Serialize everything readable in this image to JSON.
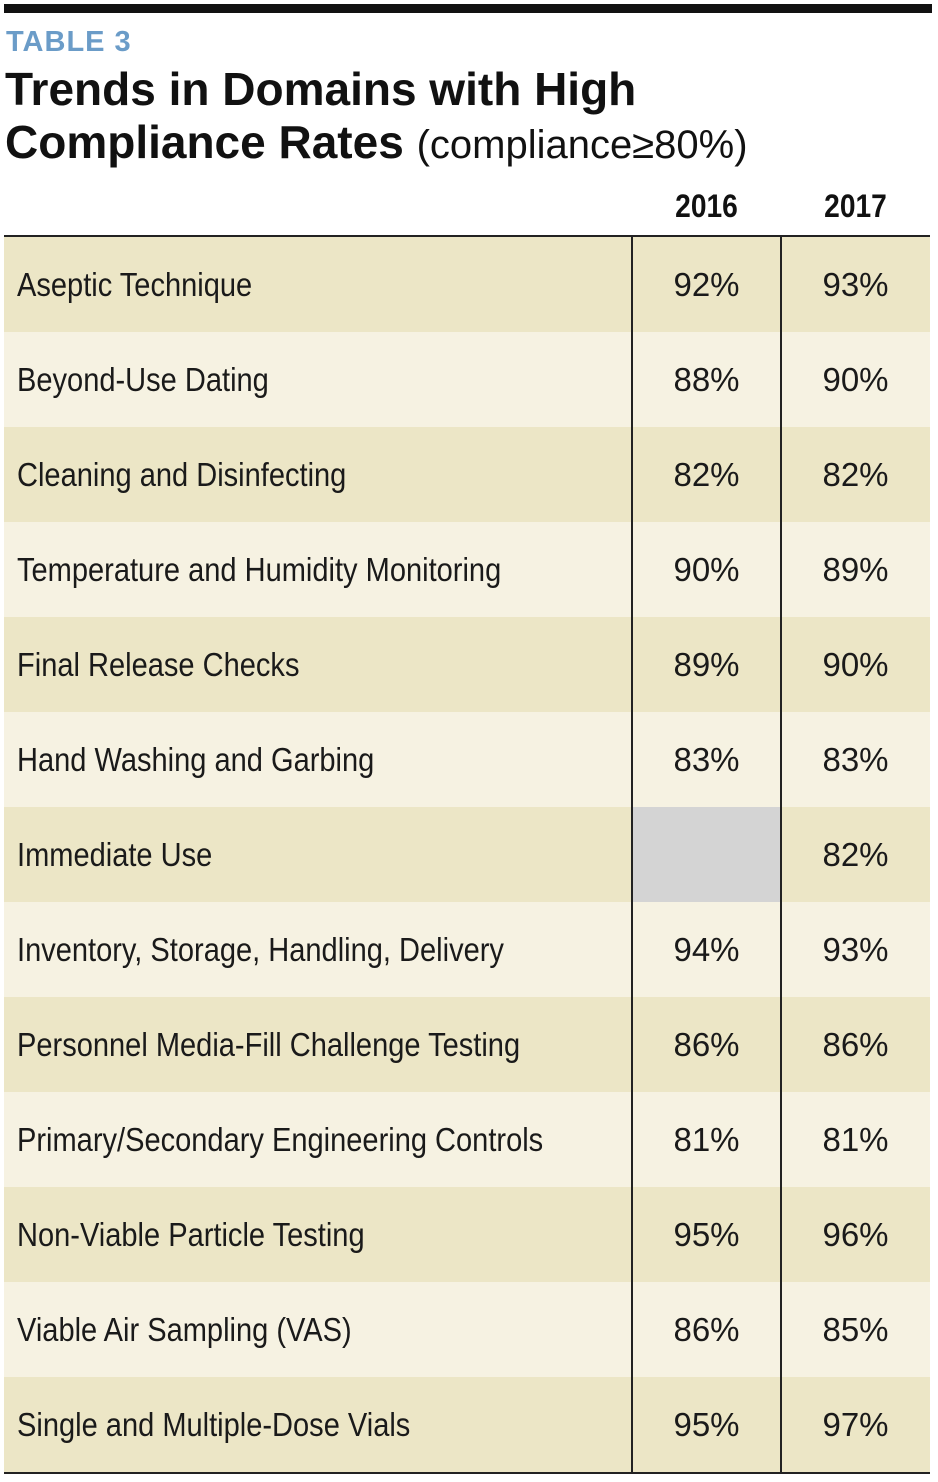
{
  "header": {
    "label": "TABLE 3",
    "title": "Trends in Domains with High Compliance Rates",
    "subtitle": "(compliance≥80%)"
  },
  "table": {
    "columns": [
      "2016",
      "2017"
    ],
    "rows": [
      [
        "Aseptic Technique",
        "92%",
        "93%"
      ],
      [
        "Beyond-Use Dating",
        "88%",
        "90%"
      ],
      [
        "Cleaning and Disinfecting",
        "82%",
        "82%"
      ],
      [
        "Temperature and Humidity Monitoring",
        "90%",
        "89%"
      ],
      [
        "Final Release Checks",
        "89%",
        "90%"
      ],
      [
        "Hand Washing and Garbing",
        "83%",
        "83%"
      ],
      [
        "Immediate Use",
        null,
        "82%"
      ],
      [
        "Inventory, Storage, Handling, Delivery",
        "94%",
        "93%"
      ],
      [
        "Personnel Media-Fill Challenge Testing",
        "86%",
        "86%"
      ],
      [
        "Primary/Secondary Engineering Controls",
        "81%",
        "81%"
      ],
      [
        "Non-Viable Particle Testing",
        "95%",
        "96%"
      ],
      [
        "Viable Air Sampling (VAS)",
        "86%",
        "85%"
      ],
      [
        "Single and Multiple-Dose Vials",
        "95%",
        "97%"
      ]
    ]
  }
}
